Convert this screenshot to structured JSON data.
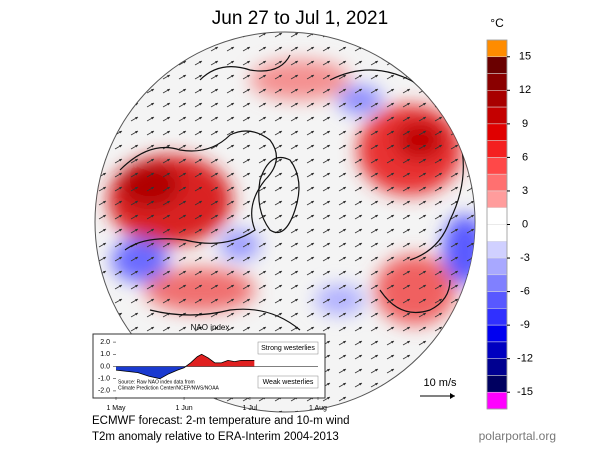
{
  "title": "Jun 27 to Jul 1, 2021",
  "colorbar": {
    "unit": "°C",
    "ticks": [
      15,
      12,
      9,
      6,
      3,
      0,
      -3,
      -6,
      -9,
      -12,
      -15
    ],
    "colors": [
      "#ff8c00",
      "#6a0000",
      "#8a0000",
      "#a80000",
      "#c40000",
      "#e00000",
      "#f42020",
      "#ff4848",
      "#ff7070",
      "#ff9c9c",
      "#ffffff",
      "#ffffff",
      "#d0d0ff",
      "#a8a8ff",
      "#8080ff",
      "#5858ff",
      "#3030ff",
      "#0000f0",
      "#0000c0",
      "#000090",
      "#000060",
      "#ff00ff"
    ]
  },
  "wind_scale": "10 m/s",
  "chart_data": {
    "type": "area",
    "title": "NAO index",
    "x": [
      0,
      5,
      10,
      15,
      20,
      24,
      28,
      31,
      34,
      37,
      39,
      42,
      45,
      48,
      51,
      54,
      57,
      61,
      63
    ],
    "values": [
      -0.3,
      -0.4,
      -0.5,
      -0.8,
      -1.0,
      -0.6,
      -0.3,
      -0.1,
      0.3,
      0.8,
      1.0,
      0.7,
      0.3,
      0.3,
      0.5,
      0.4,
      0.5,
      0.5,
      0.5
    ],
    "positive_color": "#e02020",
    "negative_color": "#1a3ad0",
    "xlim": [
      0,
      92
    ],
    "xticks": [
      {
        "value": 0,
        "label": "1 May"
      },
      {
        "value": 31,
        "label": "1 Jun"
      },
      {
        "value": 61,
        "label": "1 Jul"
      },
      {
        "value": 92,
        "label": "1 Aug"
      }
    ],
    "ylim": [
      -2.5,
      2.5
    ],
    "yticks": [
      {
        "value": 2,
        "label": "2.0"
      },
      {
        "value": 1,
        "label": "1.0"
      },
      {
        "value": 0,
        "label": "0.0"
      },
      {
        "value": -1,
        "label": "-1.0"
      },
      {
        "value": -2,
        "label": "-2.0"
      }
    ],
    "annotations": [
      "Strong westerlies",
      "Weak westerlies"
    ],
    "source": [
      "Source: Raw NAO index data from",
      "Climate Prediction Center/NCEP/NWS/NOAA"
    ]
  },
  "footer": {
    "line1": "ECMWF forecast: 2-m temperature and 10-m wind",
    "line2": "T2m anomaly relative to ERA-Interim 2004-2013",
    "credit": "polarportal.org"
  }
}
